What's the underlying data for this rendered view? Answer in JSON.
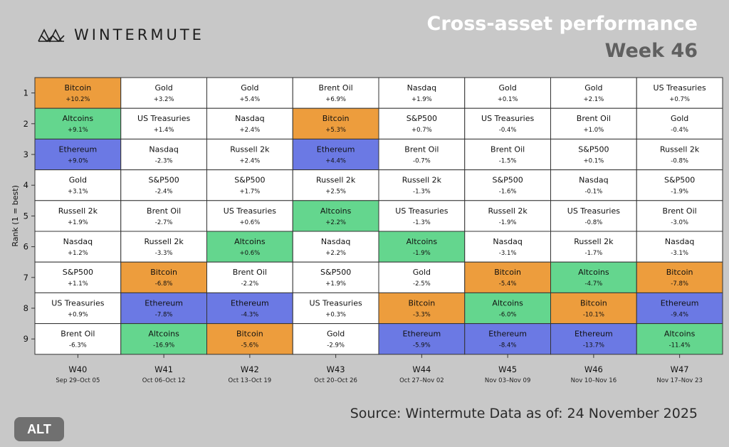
{
  "brand": {
    "name": "WINTERMUTE",
    "logo_icon": "wintermute-logo-icon"
  },
  "header": {
    "title": "Cross-asset performance",
    "subtitle": "Week 46"
  },
  "footer": {
    "source": "Source: Wintermute  Data as of: 24 November 2025",
    "badge": "ALT"
  },
  "colors": {
    "Bitcoin": "#ed9d3d",
    "Altcoins": "#64d68e",
    "Ethereum": "#6b79e4",
    "default": "#ffffff",
    "border": "#333333"
  },
  "chart_data": {
    "type": "table",
    "title": "Cross-asset performance",
    "ylabel": "Rank (1 = best)",
    "xlabel": "",
    "ranks": [
      "1",
      "2",
      "3",
      "4",
      "5",
      "6",
      "7",
      "8",
      "9"
    ],
    "weeks": [
      {
        "label": "W40",
        "dates": "Sep 29–Oct 05",
        "cells": [
          {
            "asset": "Bitcoin",
            "value": "+10.2%"
          },
          {
            "asset": "Altcoins",
            "value": "+9.1%"
          },
          {
            "asset": "Ethereum",
            "value": "+9.0%"
          },
          {
            "asset": "Gold",
            "value": "+3.1%"
          },
          {
            "asset": "Russell 2k",
            "value": "+1.9%"
          },
          {
            "asset": "Nasdaq",
            "value": "+1.2%"
          },
          {
            "asset": "S&P500",
            "value": "+1.1%"
          },
          {
            "asset": "US Treasuries",
            "value": "+0.9%"
          },
          {
            "asset": "Brent Oil",
            "value": "-6.3%"
          }
        ]
      },
      {
        "label": "W41",
        "dates": "Oct 06–Oct 12",
        "cells": [
          {
            "asset": "Gold",
            "value": "+3.2%"
          },
          {
            "asset": "US Treasuries",
            "value": "+1.4%"
          },
          {
            "asset": "Nasdaq",
            "value": "-2.3%"
          },
          {
            "asset": "S&P500",
            "value": "-2.4%"
          },
          {
            "asset": "Brent Oil",
            "value": "-2.7%"
          },
          {
            "asset": "Russell 2k",
            "value": "-3.3%"
          },
          {
            "asset": "Bitcoin",
            "value": "-6.8%"
          },
          {
            "asset": "Ethereum",
            "value": "-7.8%"
          },
          {
            "asset": "Altcoins",
            "value": "-16.9%"
          }
        ]
      },
      {
        "label": "W42",
        "dates": "Oct 13–Oct 19",
        "cells": [
          {
            "asset": "Gold",
            "value": "+5.4%"
          },
          {
            "asset": "Nasdaq",
            "value": "+2.4%"
          },
          {
            "asset": "Russell 2k",
            "value": "+2.4%"
          },
          {
            "asset": "S&P500",
            "value": "+1.7%"
          },
          {
            "asset": "US Treasuries",
            "value": "+0.6%"
          },
          {
            "asset": "Altcoins",
            "value": "+0.6%"
          },
          {
            "asset": "Brent Oil",
            "value": "-2.2%"
          },
          {
            "asset": "Ethereum",
            "value": "-4.3%"
          },
          {
            "asset": "Bitcoin",
            "value": "-5.6%"
          }
        ]
      },
      {
        "label": "W43",
        "dates": "Oct 20–Oct 26",
        "cells": [
          {
            "asset": "Brent Oil",
            "value": "+6.9%"
          },
          {
            "asset": "Bitcoin",
            "value": "+5.3%"
          },
          {
            "asset": "Ethereum",
            "value": "+4.4%"
          },
          {
            "asset": "Russell 2k",
            "value": "+2.5%"
          },
          {
            "asset": "Altcoins",
            "value": "+2.2%"
          },
          {
            "asset": "Nasdaq",
            "value": "+2.2%"
          },
          {
            "asset": "S&P500",
            "value": "+1.9%"
          },
          {
            "asset": "US Treasuries",
            "value": "+0.3%"
          },
          {
            "asset": "Gold",
            "value": "-2.9%"
          }
        ]
      },
      {
        "label": "W44",
        "dates": "Oct 27–Nov 02",
        "cells": [
          {
            "asset": "Nasdaq",
            "value": "+1.9%"
          },
          {
            "asset": "S&P500",
            "value": "+0.7%"
          },
          {
            "asset": "Brent Oil",
            "value": "-0.7%"
          },
          {
            "asset": "Russell 2k",
            "value": "-1.3%"
          },
          {
            "asset": "US Treasuries",
            "value": "-1.3%"
          },
          {
            "asset": "Altcoins",
            "value": "-1.9%"
          },
          {
            "asset": "Gold",
            "value": "-2.5%"
          },
          {
            "asset": "Bitcoin",
            "value": "-3.3%"
          },
          {
            "asset": "Ethereum",
            "value": "-5.9%"
          }
        ]
      },
      {
        "label": "W45",
        "dates": "Nov 03–Nov 09",
        "cells": [
          {
            "asset": "Gold",
            "value": "+0.1%"
          },
          {
            "asset": "US Treasuries",
            "value": "-0.4%"
          },
          {
            "asset": "Brent Oil",
            "value": "-1.5%"
          },
          {
            "asset": "S&P500",
            "value": "-1.6%"
          },
          {
            "asset": "Russell 2k",
            "value": "-1.9%"
          },
          {
            "asset": "Nasdaq",
            "value": "-3.1%"
          },
          {
            "asset": "Bitcoin",
            "value": "-5.4%"
          },
          {
            "asset": "Altcoins",
            "value": "-6.0%"
          },
          {
            "asset": "Ethereum",
            "value": "-8.4%"
          }
        ]
      },
      {
        "label": "W46",
        "dates": "Nov 10–Nov 16",
        "cells": [
          {
            "asset": "Gold",
            "value": "+2.1%"
          },
          {
            "asset": "Brent Oil",
            "value": "+1.0%"
          },
          {
            "asset": "S&P500",
            "value": "+0.1%"
          },
          {
            "asset": "Nasdaq",
            "value": "-0.1%"
          },
          {
            "asset": "US Treasuries",
            "value": "-0.8%"
          },
          {
            "asset": "Russell 2k",
            "value": "-1.7%"
          },
          {
            "asset": "Altcoins",
            "value": "-4.7%"
          },
          {
            "asset": "Bitcoin",
            "value": "-10.1%"
          },
          {
            "asset": "Ethereum",
            "value": "-13.7%"
          }
        ]
      },
      {
        "label": "W47",
        "dates": "Nov 17–Nov 23",
        "cells": [
          {
            "asset": "US Treasuries",
            "value": "+0.7%"
          },
          {
            "asset": "Gold",
            "value": "-0.4%"
          },
          {
            "asset": "Russell 2k",
            "value": "-0.8%"
          },
          {
            "asset": "S&P500",
            "value": "-1.9%"
          },
          {
            "asset": "Brent Oil",
            "value": "-3.0%"
          },
          {
            "asset": "Nasdaq",
            "value": "-3.1%"
          },
          {
            "asset": "Bitcoin",
            "value": "-7.8%"
          },
          {
            "asset": "Ethereum",
            "value": "-9.4%"
          },
          {
            "asset": "Altcoins",
            "value": "-11.4%"
          }
        ]
      }
    ]
  }
}
